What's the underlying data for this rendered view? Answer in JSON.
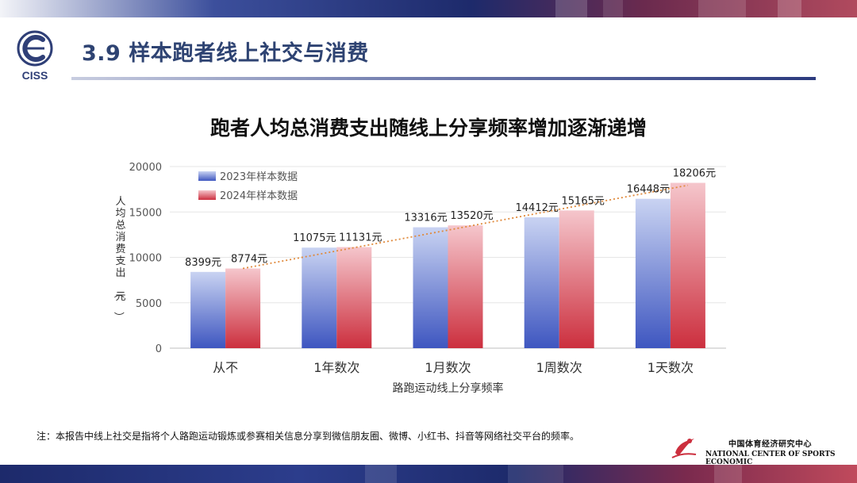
{
  "header": {
    "slide_title": "3.9 样本跑者线上社交与消费",
    "logo_text": "CISS"
  },
  "chart_title": "跑者人均总消费支出随线上分享频率增加逐渐递增",
  "note": "注：本报告中线上社交是指将个人路跑运动锻炼或参赛相关信息分享到微信朋友圈、微博、小红书、抖音等网络社交平台的频率。",
  "footer": {
    "org_cn": "中国体育经济研究中心",
    "org_en": "NATIONAL CENTER OF SPORTS ECONOMIC"
  },
  "colors": {
    "series2023": "#4a62c4",
    "series2024": "#cf3a48",
    "trendline": "#e08a3c",
    "title": "#2e4372"
  },
  "chart_data": {
    "type": "bar",
    "title": "跑者人均总消费支出随线上分享频率增加逐渐递增",
    "xlabel": "路跑运动线上分享频率",
    "ylabel": "人均总消费支出（元）",
    "ylim": [
      0,
      20000
    ],
    "yticks": [
      0,
      5000,
      10000,
      15000,
      20000
    ],
    "categories": [
      "从不",
      "1年数次",
      "1月数次",
      "1周数次",
      "1天数次"
    ],
    "series": [
      {
        "name": "2023年样本数据",
        "values": [
          8399,
          11075,
          13316,
          14412,
          16448
        ],
        "labels": [
          "8399元",
          "11075元",
          "13316元",
          "14412元",
          "16448元"
        ]
      },
      {
        "name": "2024年样本数据",
        "values": [
          8774,
          11131,
          13520,
          15165,
          18206
        ],
        "labels": [
          "8774元",
          "11131元",
          "13520元",
          "15165元",
          "18206元"
        ]
      }
    ],
    "trendline": {
      "series": "2024年样本数据",
      "style": "dotted"
    },
    "grid": true,
    "legend_position": "top-left"
  }
}
